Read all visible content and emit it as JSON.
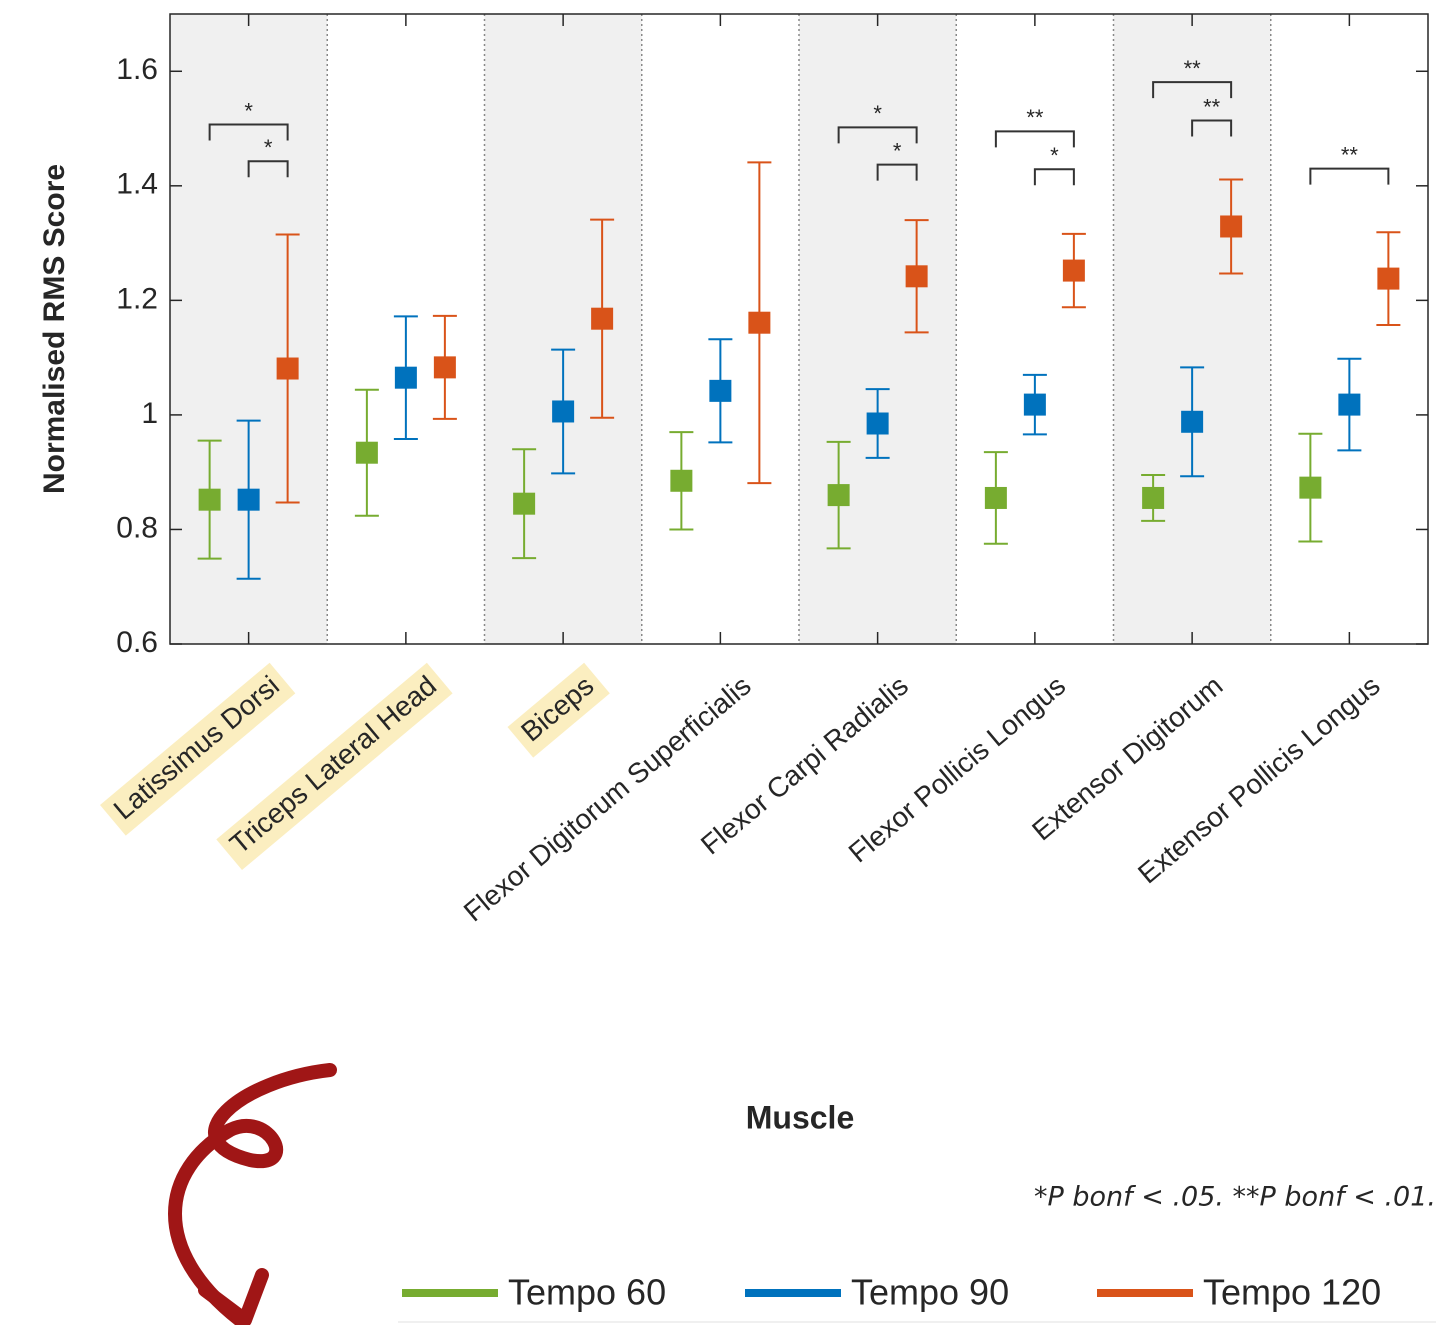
{
  "chart_data": {
    "type": "errorbar",
    "y_label": "Normalised RMS Score",
    "x_label": "Muscle",
    "note": "*P bonf < .05. **P bonf < .01.",
    "categories": [
      "Latissimus Dorsi",
      "Triceps Lateral Head",
      "Biceps",
      "Flexor Digitorum Superficialis",
      "Flexor Carpi Radialis",
      "Flexor Pollicis Longus",
      "Extensor Digitorum",
      "Extensor Pollicis Longus"
    ],
    "highlighted": [
      true,
      true,
      true,
      false,
      false,
      false,
      false,
      false
    ],
    "shaded": [
      true,
      false,
      true,
      false,
      true,
      false,
      true,
      false
    ],
    "highlight_color": "#fbeec0",
    "shade_color": "#f0f0f0",
    "series": [
      {
        "name": "Tempo 60",
        "color": "#77ac30",
        "values": [
          0.852,
          0.934,
          0.845,
          0.885,
          0.86,
          0.855,
          0.855,
          0.873
        ],
        "errors": [
          0.103,
          0.11,
          0.095,
          0.085,
          0.093,
          0.08,
          0.04,
          0.094
        ]
      },
      {
        "name": "Tempo 90",
        "color": "#0072bd",
        "values": [
          0.852,
          1.065,
          1.006,
          1.042,
          0.985,
          1.018,
          0.988,
          1.018
        ],
        "errors": [
          0.138,
          0.107,
          0.108,
          0.09,
          0.06,
          0.052,
          0.095,
          0.08
        ]
      },
      {
        "name": "Tempo 120",
        "color": "#d95319",
        "values": [
          1.081,
          1.083,
          1.168,
          1.161,
          1.242,
          1.252,
          1.329,
          1.238
        ],
        "errors": [
          0.234,
          0.09,
          0.173,
          0.28,
          0.098,
          0.064,
          0.082,
          0.081
        ]
      }
    ],
    "brackets": [
      {
        "category": 0,
        "from": 0,
        "to": 2,
        "label": "*",
        "y": 1.507
      },
      {
        "category": 0,
        "from": 1,
        "to": 2,
        "label": "*",
        "y": 1.443
      },
      {
        "category": 4,
        "from": 0,
        "to": 2,
        "label": "*",
        "y": 1.502
      },
      {
        "category": 4,
        "from": 1,
        "to": 2,
        "label": "*",
        "y": 1.437
      },
      {
        "category": 5,
        "from": 0,
        "to": 2,
        "label": "**",
        "y": 1.495
      },
      {
        "category": 5,
        "from": 1,
        "to": 2,
        "label": "*",
        "y": 1.429
      },
      {
        "category": 6,
        "from": 0,
        "to": 2,
        "label": "**",
        "y": 1.581
      },
      {
        "category": 6,
        "from": 1,
        "to": 2,
        "label": "**",
        "y": 1.514
      },
      {
        "category": 7,
        "from": 0,
        "to": 2,
        "label": "**",
        "y": 1.43
      }
    ],
    "ylim": [
      0.6,
      1.7
    ],
    "yticks": [
      0.6,
      0.8,
      1,
      1.2,
      1.4,
      1.6
    ]
  }
}
